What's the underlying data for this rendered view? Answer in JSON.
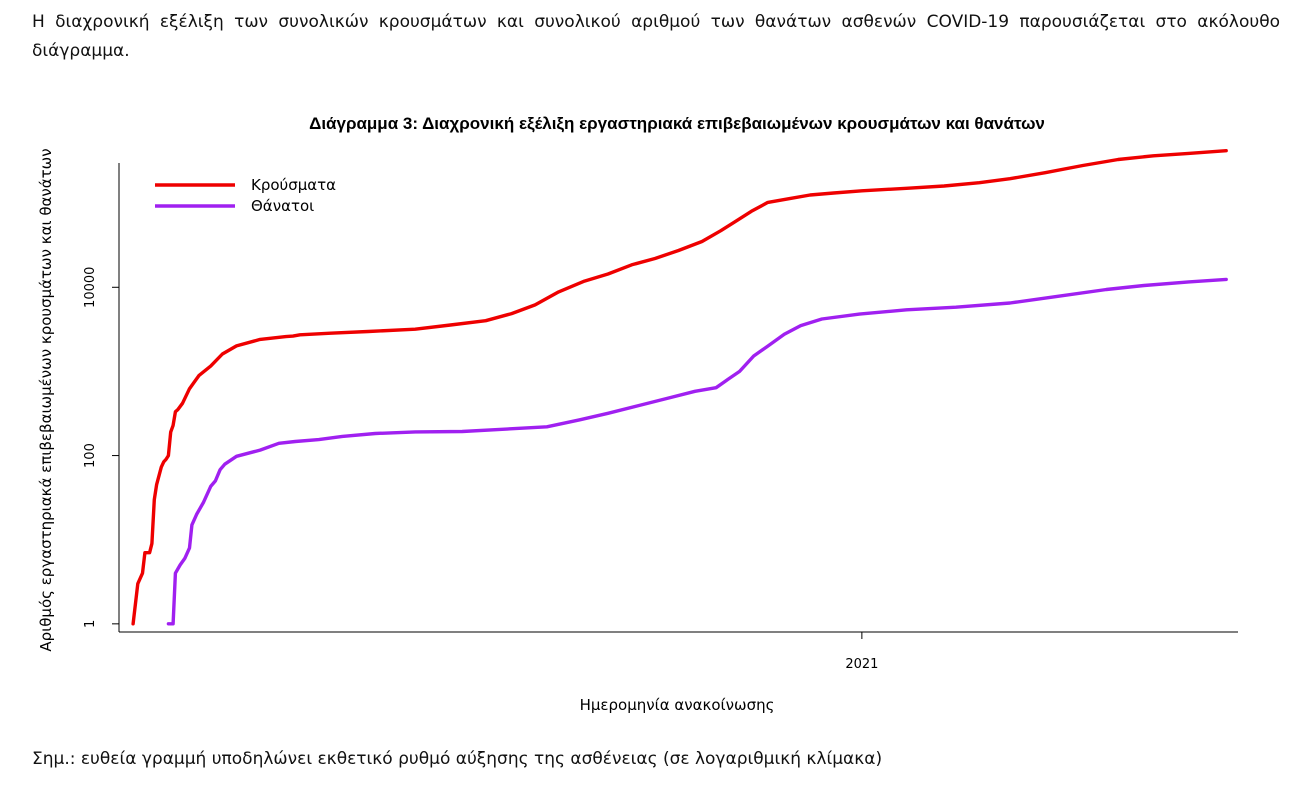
{
  "intro_text": "Η διαχρονική εξέλιξη των συνολικών κρουσμάτων και συνολικού αριθμού των θανάτων ασθενών COVID-19 παρουσιάζεται στο ακόλουθο διάγραμμα.",
  "note_text": "Σημ.: ευθεία γραμμή υποδηλώνει εκθετικό ρυθμό αύξησης της ασθένειας (σε λογαριθμική κλίμακα)",
  "chart_data": {
    "type": "line",
    "title": "Διάγραμμα 3: Διαχρονική εξέλιξη εργαστηριακά επιβεβαιωμένων κρουσμάτων και θανάτων",
    "xlabel": "Ημερομηνία ανακοίνωσης",
    "ylabel": "Αριθμός εργαστηριακά επιβεβαιωμένων κρουσμάτων και θανάτων",
    "y_scale": "log",
    "ylim": [
      0.8,
      300000
    ],
    "y_ticks": [
      1,
      100,
      10000
    ],
    "y_tick_labels": [
      "1",
      "100",
      "10000"
    ],
    "xlim": [
      "2020-02-20",
      "2021-06-10"
    ],
    "x_ticks": [
      "2021-01-01"
    ],
    "x_tick_labels": [
      "2021"
    ],
    "legend_position": "top-left",
    "grid": false,
    "series": [
      {
        "name": "Κρούσματα",
        "color": "#ee0000",
        "points": [
          [
            "2020-02-26",
            1
          ],
          [
            "2020-02-28",
            3
          ],
          [
            "2020-03-01",
            4
          ],
          [
            "2020-03-02",
            7
          ],
          [
            "2020-03-04",
            7
          ],
          [
            "2020-03-05",
            9
          ],
          [
            "2020-03-06",
            30
          ],
          [
            "2020-03-07",
            45
          ],
          [
            "2020-03-09",
            73
          ],
          [
            "2020-03-10",
            84
          ],
          [
            "2020-03-11",
            90
          ],
          [
            "2020-03-12",
            100
          ],
          [
            "2020-03-13",
            190
          ],
          [
            "2020-03-14",
            228
          ],
          [
            "2020-03-15",
            331
          ],
          [
            "2020-03-16",
            352
          ],
          [
            "2020-03-18",
            418
          ],
          [
            "2020-03-21",
            624
          ],
          [
            "2020-03-25",
            892
          ],
          [
            "2020-03-30",
            1156
          ],
          [
            "2020-04-04",
            1613
          ],
          [
            "2020-04-10",
            2011
          ],
          [
            "2020-04-20",
            2401
          ],
          [
            "2020-05-01",
            2591
          ],
          [
            "2020-05-04",
            2632
          ],
          [
            "2020-05-07",
            2726
          ],
          [
            "2020-05-20",
            2850
          ],
          [
            "2020-06-05",
            2980
          ],
          [
            "2020-06-25",
            3180
          ],
          [
            "2020-07-10",
            3562
          ],
          [
            "2020-07-25",
            4012
          ],
          [
            "2020-08-05",
            4870
          ],
          [
            "2020-08-15",
            6177
          ],
          [
            "2020-08-25",
            8819
          ],
          [
            "2020-09-05",
            11832
          ],
          [
            "2020-09-15",
            14400
          ],
          [
            "2020-09-25",
            18475
          ],
          [
            "2020-10-05",
            22000
          ],
          [
            "2020-10-15",
            27334
          ],
          [
            "2020-10-25",
            35000
          ],
          [
            "2020-11-02",
            47000
          ],
          [
            "2020-11-08",
            60000
          ],
          [
            "2020-11-15",
            80000
          ],
          [
            "2020-11-22",
            102000
          ],
          [
            "2020-12-01",
            113000
          ],
          [
            "2020-12-10",
            125000
          ],
          [
            "2020-12-20",
            132000
          ],
          [
            "2021-01-01",
            140000
          ],
          [
            "2021-01-20",
            150000
          ],
          [
            "2021-02-05",
            160000
          ],
          [
            "2021-02-20",
            175000
          ],
          [
            "2021-03-05",
            195000
          ],
          [
            "2021-03-20",
            230000
          ],
          [
            "2021-04-05",
            280000
          ],
          [
            "2021-04-20",
            330000
          ],
          [
            "2021-05-05",
            365000
          ],
          [
            "2021-05-20",
            390000
          ],
          [
            "2021-06-05",
            420000
          ]
        ]
      },
      {
        "name": "Θάνατοι",
        "color": "#a020f0",
        "points": [
          [
            "2020-03-12",
            1
          ],
          [
            "2020-03-14",
            1
          ],
          [
            "2020-03-15",
            4
          ],
          [
            "2020-03-17",
            5
          ],
          [
            "2020-03-19",
            6
          ],
          [
            "2020-03-21",
            8
          ],
          [
            "2020-03-22",
            15
          ],
          [
            "2020-03-24",
            20
          ],
          [
            "2020-03-27",
            28
          ],
          [
            "2020-03-30",
            43
          ],
          [
            "2020-04-01",
            50
          ],
          [
            "2020-04-03",
            68
          ],
          [
            "2020-04-05",
            79
          ],
          [
            "2020-04-10",
            98
          ],
          [
            "2020-04-20",
            116
          ],
          [
            "2020-04-28",
            140
          ],
          [
            "2020-05-05",
            147
          ],
          [
            "2020-05-15",
            155
          ],
          [
            "2020-05-25",
            169
          ],
          [
            "2020-06-08",
            183
          ],
          [
            "2020-06-25",
            191
          ],
          [
            "2020-07-15",
            193
          ],
          [
            "2020-08-01",
            205
          ],
          [
            "2020-08-20",
            220
          ],
          [
            "2020-09-03",
            266
          ],
          [
            "2020-09-15",
            318
          ],
          [
            "2020-09-28",
            393
          ],
          [
            "2020-10-10",
            477
          ],
          [
            "2020-10-22",
            581
          ],
          [
            "2020-10-31",
            641
          ],
          [
            "2020-11-05",
            803
          ],
          [
            "2020-11-10",
            1000
          ],
          [
            "2020-11-16",
            1527
          ],
          [
            "2020-11-22",
            2000
          ],
          [
            "2020-11-29",
            2760
          ],
          [
            "2020-12-06",
            3500
          ],
          [
            "2020-12-15",
            4200
          ],
          [
            "2020-12-31",
            4800
          ],
          [
            "2021-01-20",
            5400
          ],
          [
            "2021-02-10",
            5800
          ],
          [
            "2021-03-05",
            6500
          ],
          [
            "2021-03-25",
            7800
          ],
          [
            "2021-04-15",
            9400
          ],
          [
            "2021-05-01",
            10500
          ],
          [
            "2021-05-20",
            11600
          ],
          [
            "2021-06-05",
            12400
          ]
        ]
      }
    ]
  }
}
